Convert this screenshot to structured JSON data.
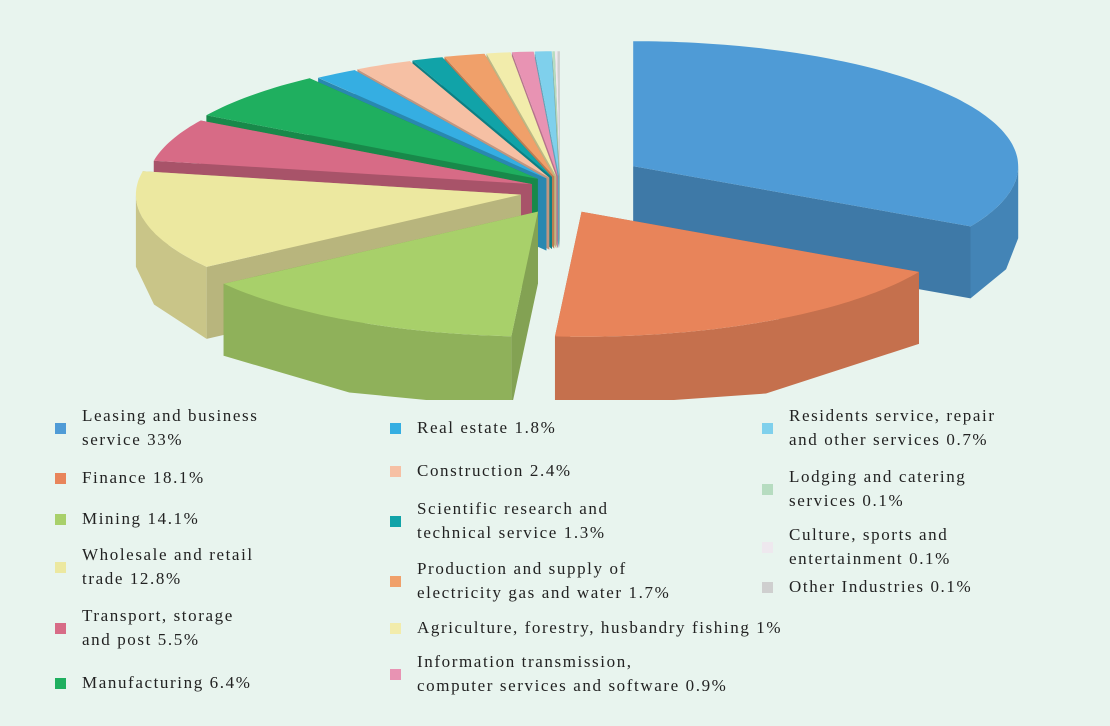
{
  "chart_data": {
    "type": "pie3d",
    "categories": [
      "Leasing and business\nservice 33%",
      "Finance 18.1%",
      "Mining 14.1%",
      "Wholesale and retail\ntrade 12.8%",
      "Transport, storage\nand post 5.5%",
      "Manufacturing 6.4%",
      "Real estate 1.8%",
      "Construction 2.4%",
      "Scientific research and\ntechnical service 1.3%",
      "Production and supply of\nelectricity gas and water 1.7%",
      "Agriculture, forestry, husbandry fishing 1%",
      "Information transmission,\ncomputer services and software 0.9%",
      "Residents service, repair\nand other services 0.7%",
      "Lodging and catering\nservices 0.1%",
      "Culture, sports and\nentertainment 0.1%",
      "Other Industries 0.1%"
    ],
    "values": [
      33,
      18.1,
      14.1,
      12.8,
      5.5,
      6.4,
      1.8,
      2.4,
      1.3,
      1.7,
      1,
      0.9,
      0.7,
      0.1,
      0.1,
      0.1
    ],
    "colors": [
      "#4f9bd6",
      "#e8845a",
      "#a8d06a",
      "#ece8a0",
      "#d76b86",
      "#1faf5f",
      "#35aee2",
      "#f6c0a4",
      "#11a3a8",
      "#f0a06a",
      "#f2ecab",
      "#e893b3",
      "#7fd0ec",
      "#b6dcc0",
      "#eee8ee",
      "#cfcfcf"
    ],
    "legend": "bottom"
  }
}
